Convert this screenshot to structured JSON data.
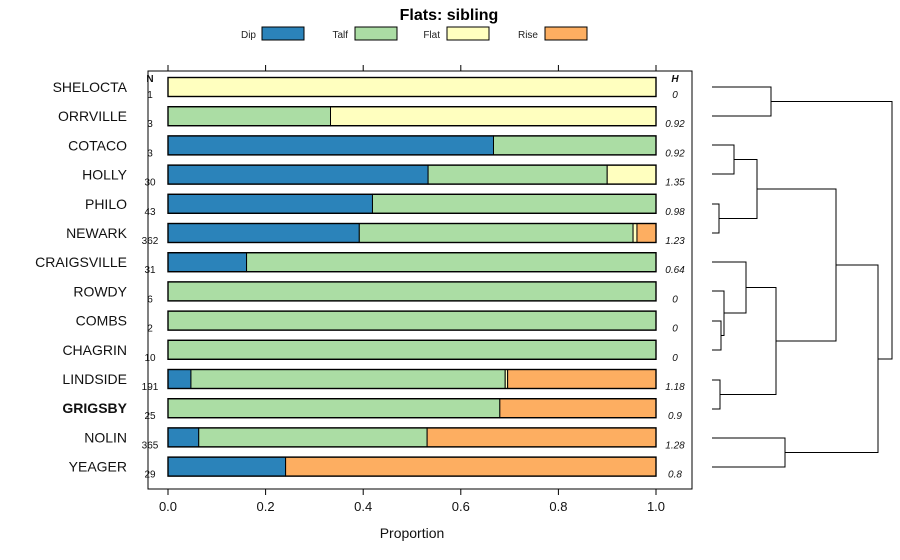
{
  "chart_data": {
    "type": "bar",
    "orientation": "horizontal",
    "stacked": true,
    "title": "Flats: sibling",
    "xlabel": "Proportion",
    "xlim": [
      0,
      1
    ],
    "xticks": [
      "0.0",
      "0.2",
      "0.4",
      "0.6",
      "0.8",
      "1.0"
    ],
    "n_header": "N",
    "h_header": "H",
    "legend": [
      {
        "name": "Dip",
        "color": "#2b83ba"
      },
      {
        "name": "Talf",
        "color": "#abdda4"
      },
      {
        "name": "Flat",
        "color": "#ffffbf"
      },
      {
        "name": "Rise",
        "color": "#fdae61"
      }
    ],
    "categories": [
      "SHELOCTA",
      "ORRVILLE",
      "COTACO",
      "HOLLY",
      "PHILO",
      "NEWARK",
      "CRAIGSVILLE",
      "ROWDY",
      "COMBS",
      "CHAGRIN",
      "LINDSIDE",
      "GRIGSBY",
      "NOLIN",
      "YEAGER"
    ],
    "highlight": "GRIGSBY",
    "n": [
      "1",
      "3",
      "3",
      "30",
      "43",
      "362",
      "31",
      "6",
      "2",
      "10",
      "191",
      "25",
      "365",
      "29"
    ],
    "h": [
      "0",
      "0.92",
      "0.92",
      "1.35",
      "0.98",
      "1.23",
      "0.64",
      "0",
      "0",
      "0",
      "1.18",
      "0.9",
      "1.28",
      "0.8"
    ],
    "series": [
      {
        "name": "Dip",
        "values": [
          0,
          0,
          0.667,
          0.533,
          0.419,
          0.392,
          0.161,
          0,
          0,
          0,
          0.047,
          0,
          0.063,
          0.241
        ]
      },
      {
        "name": "Talf",
        "values": [
          0,
          0.333,
          0.333,
          0.367,
          0.581,
          0.561,
          0.839,
          1,
          1,
          1,
          0.644,
          0.68,
          0.468,
          0
        ]
      },
      {
        "name": "Flat",
        "values": [
          1,
          0.667,
          0,
          0.1,
          0,
          0.008,
          0,
          0,
          0,
          0,
          0.005,
          0,
          0,
          0
        ]
      },
      {
        "name": "Rise",
        "values": [
          0,
          0,
          0,
          0,
          0,
          0.039,
          0,
          0,
          0,
          0,
          0.304,
          0.32,
          0.469,
          0.759
        ]
      }
    ],
    "dendrogram": "hierarchical clustering of the 14 rows"
  }
}
